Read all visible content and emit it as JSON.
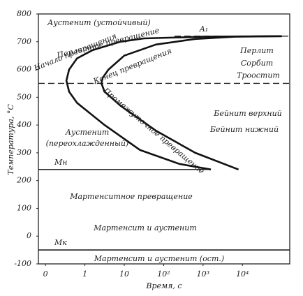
{
  "chart_data": {
    "type": "line",
    "y_label": "Температура, °C",
    "x_label": "Время, с",
    "xlim": [
      -1.18,
      5.2
    ],
    "ylim": [
      -100,
      800
    ],
    "xticks": [
      {
        "value": -1,
        "label": "0"
      },
      {
        "value": 0,
        "label": "1"
      },
      {
        "value": 1,
        "label": "10"
      },
      {
        "value": 2,
        "label": "10²"
      },
      {
        "value": 3,
        "label": "10³"
      },
      {
        "value": 4,
        "label": "10⁴"
      }
    ],
    "yticks": [
      -100,
      0,
      100,
      200,
      300,
      400,
      500,
      600,
      700,
      800
    ],
    "series": [
      {
        "name": "Начало превращения",
        "color": "#111111",
        "x": [
          5.0,
          3.0,
          1.5,
          0.9,
          0.2,
          -0.2,
          -0.4,
          -0.47,
          -0.4,
          -0.2,
          0.5,
          1.4,
          2.4,
          3.2
        ],
        "values": [
          720,
          718,
          712,
          700,
          670,
          640,
          600,
          560,
          520,
          480,
          400,
          310,
          260,
          240
        ]
      },
      {
        "name": "Конец превращения",
        "color": "#111111",
        "x": [
          5.0,
          3.8,
          2.8,
          1.8,
          1.0,
          0.6,
          0.45,
          0.42,
          0.5,
          0.9,
          1.8,
          2.8,
          3.9
        ],
        "values": [
          720,
          718,
          710,
          690,
          650,
          600,
          570,
          550,
          520,
          470,
          380,
          300,
          240
        ]
      }
    ],
    "hlines": [
      {
        "label": "A₁",
        "value": 720,
        "dashed": true
      },
      {
        "label": "Троостит",
        "value": 550,
        "dashed": true
      },
      {
        "label": "Mн",
        "value": 240,
        "dashed": false
      },
      {
        "label": "Mк",
        "value": -50,
        "dashed": false
      }
    ],
    "annotations": [
      "Аустенит (устойчивый)",
      "Перлитное превращение",
      "Перлит",
      "Сорбит",
      "Промежуточное превращение",
      "Бейнит верхний",
      "Бейнит нижний",
      "Аустенит",
      "(переохлажденный)",
      "Мартенситное превращение",
      "Мартенсит и аустенит",
      "Мартенсит и аустенит (ост.)"
    ]
  }
}
